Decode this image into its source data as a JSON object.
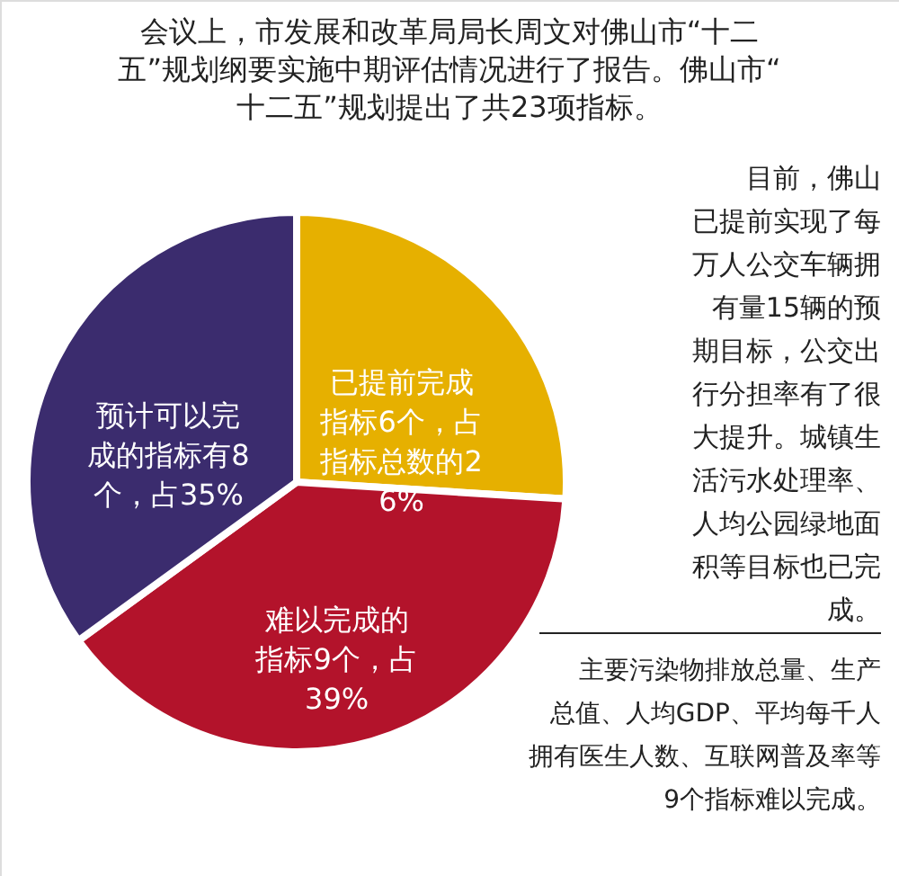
{
  "chart_data": {
    "type": "pie",
    "categories": [
      "已提前完成指标6个，占指标总数的26%",
      "难以完成的指标9个，占39%",
      "预计可以完成的指标有8个，占35%"
    ],
    "values": [
      26,
      39,
      35
    ],
    "colors": [
      "#e6b000",
      "#b3132b",
      "#3b2c6e"
    ],
    "annotations": [
      "会议上，市发展和改革局局长周文对佛山市“十二五”规划纲要实施中期评估情况进行了报告。佛山市“十二五”规划提出了共23项指标。",
      "目前，佛山已提前实现了每万人公交车辆拥有量15辆的预期目标，公交出行分担率有了很大提升。城镇生活污水处理率、人均公园绿地面积等目标也已完成。",
      "主要污染物排放总量、生产总值、人均GDP、平均每千人拥有医生人数、互联网普及率等9个指标难以完成。"
    ]
  }
}
